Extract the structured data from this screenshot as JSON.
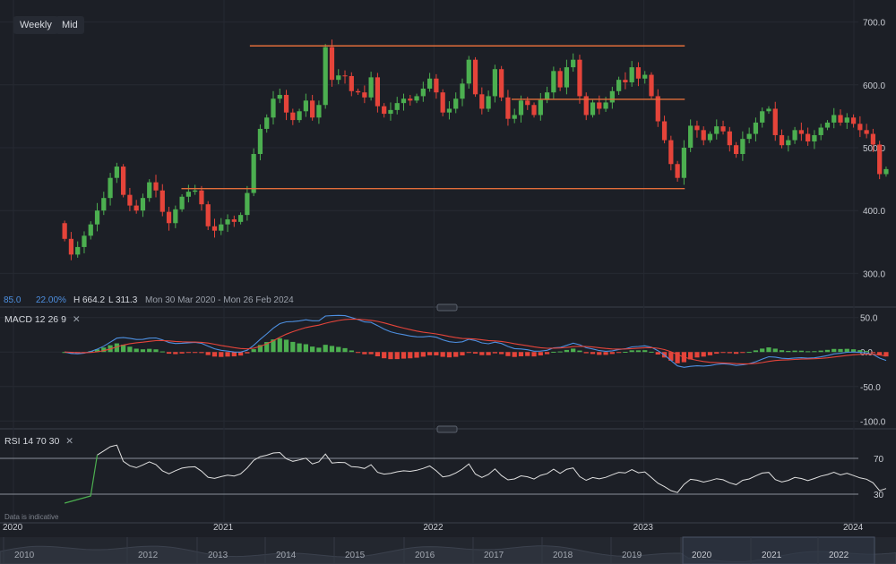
{
  "toolbar": {
    "interval": "Weekly",
    "price_type": "Mid"
  },
  "info_bar": {
    "value_1": "85.0",
    "value_2": "22.00%",
    "high": "H 664.2",
    "low": "L 311.3",
    "range": "Mon 30 Mar 2020 - Mon 26 Feb 2024"
  },
  "macd": {
    "label": "MACD",
    "p1": "12",
    "p2": "26",
    "p3": "9"
  },
  "rsi": {
    "label": "RSI",
    "p1": "14",
    "p2": "70",
    "p3": "30"
  },
  "indicative_note": "Data is indicative",
  "colors": {
    "background": "#1c1f26",
    "up": "#4caf50",
    "down": "#e5443a",
    "levels": "#e26d3a",
    "macd_line": "#4d8fe0",
    "signal_line": "#e5443a",
    "rsi_line": "#e0e0e0"
  },
  "chart_data": [
    {
      "type": "candlestick",
      "title": "",
      "x_ticks": [
        "2020",
        "2021",
        "2022",
        "2023",
        "2024"
      ],
      "y_ticks": [
        "300.0",
        "400.0",
        "500.0",
        "600.0",
        "700.0"
      ],
      "ylim": [
        265,
        735
      ],
      "start_date": "2020-03-30",
      "end_date": "2024-02-26",
      "high": 664.2,
      "low": 311.3,
      "horizontal_levels": [
        {
          "price": 662,
          "from": "2021-02-15",
          "to": "2023-03-13"
        },
        {
          "price": 577,
          "from": "2022-05-16",
          "to": "2023-03-13"
        },
        {
          "price": 435,
          "from": "2020-10-19",
          "to": "2023-03-13"
        }
      ],
      "closes": [
        355,
        330,
        342,
        360,
        378,
        400,
        420,
        452,
        470,
        425,
        408,
        400,
        420,
        445,
        432,
        398,
        380,
        402,
        422,
        430,
        432,
        410,
        375,
        368,
        378,
        386,
        382,
        393,
        428,
        490,
        530,
        548,
        578,
        584,
        556,
        544,
        558,
        575,
        548,
        568,
        660,
        608,
        615,
        614,
        590,
        588,
        580,
        612,
        566,
        554,
        560,
        571,
        578,
        575,
        582,
        594,
        610,
        588,
        556,
        562,
        578,
        602,
        640,
        585,
        562,
        582,
        625,
        580,
        546,
        552,
        575,
        568,
        552,
        576,
        588,
        622,
        596,
        628,
        640,
        582,
        552,
        572,
        562,
        572,
        590,
        608,
        604,
        628,
        610,
        616,
        582,
        542,
        512,
        474,
        452,
        500,
        535,
        528,
        512,
        522,
        534,
        526,
        504,
        490,
        514,
        522,
        540,
        558,
        562,
        520,
        504,
        512,
        528,
        522,
        510,
        520,
        532,
        540,
        552,
        540,
        548,
        538,
        528,
        522,
        505,
        458,
        466
      ],
      "series": [
        {
          "name": "MACD",
          "ylim": [
            -110,
            60
          ],
          "y_ticks": [
            "50.0",
            "0.0",
            "-50.0",
            "-100.0"
          ]
        },
        {
          "name": "RSI",
          "ylim": [
            0,
            100
          ],
          "y_ticks": [
            "70",
            "30"
          ],
          "levels": [
            70,
            30
          ]
        }
      ]
    },
    {
      "type": "area",
      "x_ticks": [
        "2010",
        "2012",
        "2013",
        "2014",
        "2015",
        "2016",
        "2017",
        "2018",
        "2019",
        "2020",
        "2021",
        "2022"
      ]
    }
  ]
}
